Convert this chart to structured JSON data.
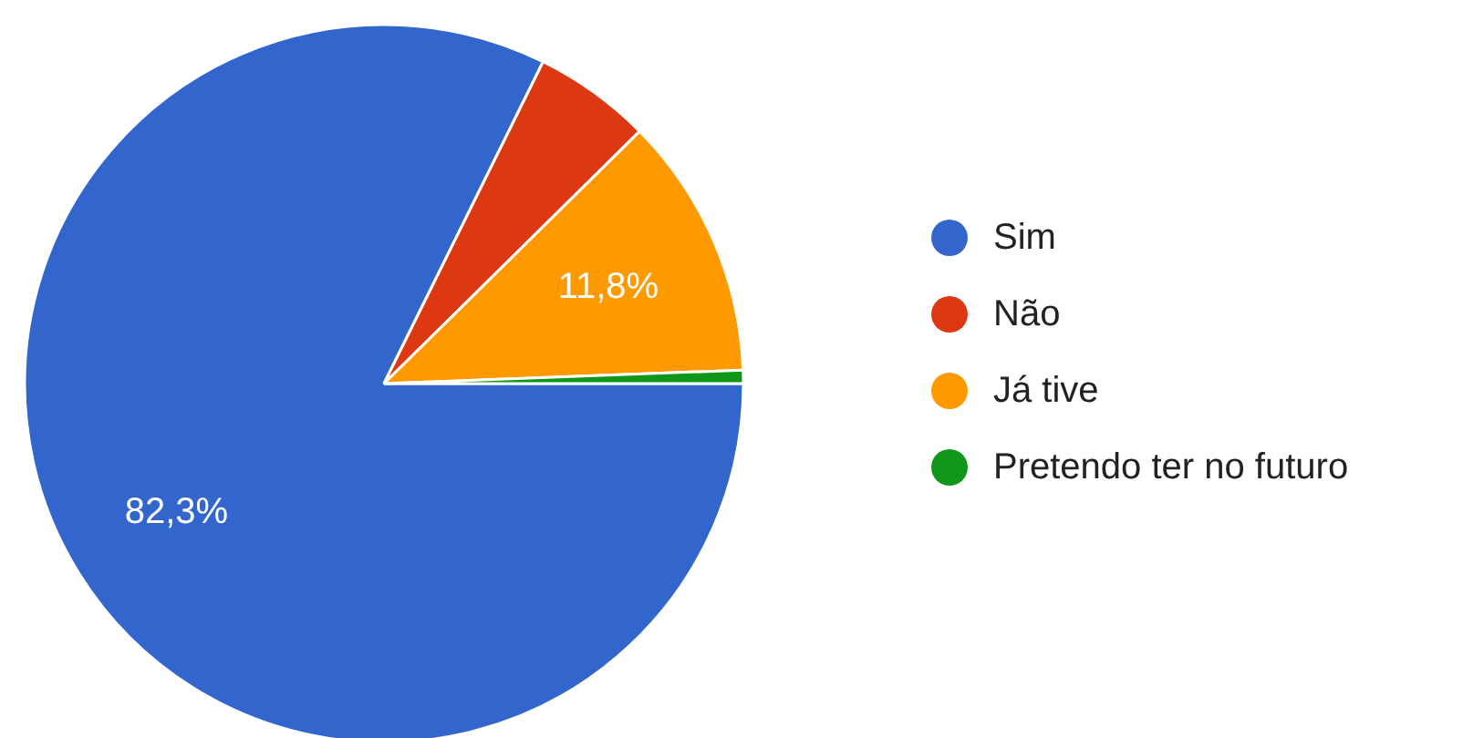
{
  "chart_data": {
    "type": "pie",
    "categories": [
      "Sim",
      "Não",
      "Já tive",
      "Pretendo ter no futuro"
    ],
    "values": [
      82.3,
      5.3,
      11.8,
      0.6
    ],
    "colors": [
      "#3366cc",
      "#dc3912",
      "#ff9900",
      "#109618"
    ],
    "value_labels": [
      "82,3%",
      null,
      "11,8%",
      null
    ],
    "legend": "right"
  }
}
